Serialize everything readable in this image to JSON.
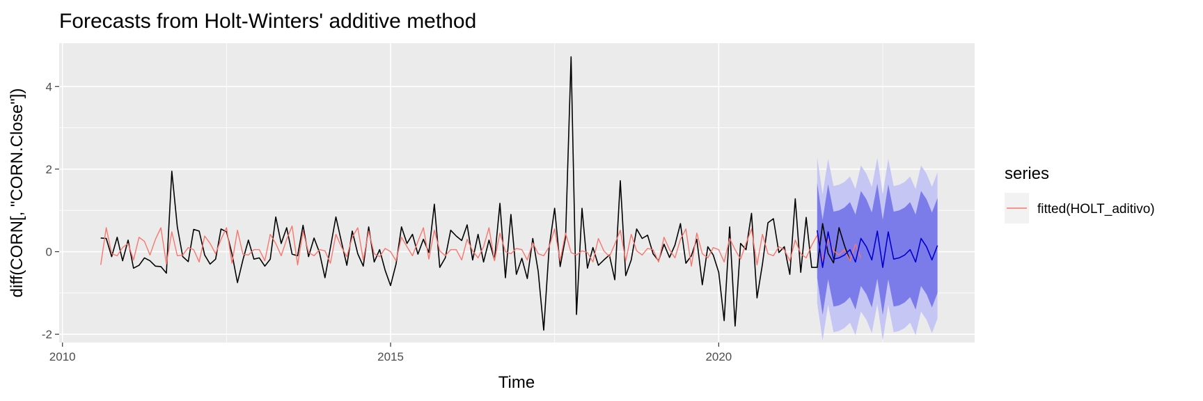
{
  "chart_data": {
    "type": "line",
    "title": "Forecasts from Holt-Winters' additive method",
    "xlabel": "Time",
    "ylabel": "diff(CORN[, \"CORN.Close\"])",
    "xlim": [
      2009.95,
      2023.9
    ],
    "ylim": [
      -2.2,
      5.05
    ],
    "x_ticks": [
      2010,
      2015,
      2020
    ],
    "x_tick_labels": [
      "2010",
      "2015",
      "2020"
    ],
    "y_ticks": [
      -2,
      0,
      2,
      4
    ],
    "y_tick_labels": [
      "-2",
      "0",
      "2",
      "4"
    ],
    "grid": true,
    "legend_position": "right",
    "legend_title": "series",
    "colors": {
      "observed": "#000000",
      "fitted": "#F8766D",
      "forecast": "#0000CC",
      "band80": "#7B7BEA",
      "band95": "#C6C6F5",
      "panel": "#EBEBEB",
      "grid": "#FFFFFF"
    },
    "series": [
      {
        "name": "",
        "role": "observed",
        "x_start": 2010.5833,
        "frequency": 12,
        "values": [
          0.33,
          0.32,
          -0.12,
          0.35,
          -0.22,
          0.28,
          -0.4,
          -0.33,
          -0.15,
          -0.22,
          -0.35,
          -0.36,
          -0.52,
          1.95,
          0.6,
          -0.12,
          -0.24,
          0.54,
          0.5,
          -0.08,
          -0.3,
          -0.18,
          0.55,
          0.48,
          -0.05,
          -0.75,
          -0.2,
          0.28,
          -0.18,
          -0.15,
          -0.35,
          -0.18,
          0.84,
          0.2,
          0.58,
          -0.06,
          -0.1,
          0.64,
          -0.12,
          0.33,
          -0.02,
          -0.63,
          0.1,
          0.84,
          0.25,
          -0.33,
          0.5,
          -0.05,
          -0.35,
          0.6,
          -0.25,
          0.05,
          -0.45,
          -0.82,
          -0.3,
          0.6,
          0.2,
          0.42,
          -0.06,
          0.3,
          -0.02,
          1.15,
          -0.38,
          -0.15,
          0.52,
          0.38,
          0.27,
          0.65,
          -0.2,
          0.42,
          -0.25,
          0.28,
          -0.2,
          1.17,
          -0.63,
          0.9,
          -0.55,
          -0.16,
          -0.65,
          0.32,
          -0.48,
          -1.9,
          0.1,
          1.05,
          -0.36,
          0.35,
          4.72,
          -1.52,
          1.05,
          -0.4,
          0.1,
          -0.33,
          -0.2,
          -0.08,
          -0.68,
          1.72,
          -0.58,
          -0.2,
          0.55,
          0.32,
          0.4,
          -0.05,
          -0.22,
          0.18,
          -0.14,
          0.16,
          0.68,
          -0.28,
          -0.1,
          0.3,
          -0.8,
          0.12,
          -0.08,
          -0.5,
          -1.67,
          0.6,
          -1.8,
          0.2,
          0.05,
          0.93,
          -1.12,
          -0.3,
          0.7,
          0.8,
          -0.02,
          0.12,
          -0.55,
          1.28,
          -0.5,
          0.83,
          -0.38,
          -0.38,
          0.68,
          -0.04,
          -0.27,
          0.58,
          0.15,
          -0.22
        ]
      },
      {
        "name": "fitted(HOLT_aditivo)",
        "role": "fitted",
        "x_start": 2010.5833,
        "frequency": 12,
        "values": [
          -0.32,
          0.58,
          -0.05,
          -0.1,
          0.1,
          0.2,
          -0.2,
          0.35,
          0.25,
          -0.08,
          0.3,
          0.58,
          -0.3,
          0.48,
          -0.1,
          -0.08,
          0.1,
          0.05,
          -0.25,
          0.38,
          0.2,
          -0.05,
          0.3,
          0.58,
          -0.28,
          0.52,
          -0.06,
          -0.08,
          0.05,
          0.05,
          -0.22,
          0.42,
          0.2,
          -0.1,
          0.3,
          0.62,
          -0.32,
          0.5,
          -0.02,
          -0.1,
          0.05,
          0.02,
          -0.28,
          0.42,
          0.12,
          -0.12,
          0.35,
          0.58,
          -0.2,
          0.5,
          -0.05,
          -0.12,
          0.08,
          0.0,
          -0.22,
          0.35,
          0.12,
          -0.1,
          0.25,
          0.58,
          -0.18,
          0.52,
          0.02,
          -0.1,
          0.05,
          0.05,
          -0.2,
          0.3,
          0.02,
          -0.15,
          0.12,
          0.58,
          -0.22,
          0.45,
          0.0,
          -0.05,
          0.08,
          0.05,
          -0.2,
          0.22,
          -0.05,
          -0.1,
          0.12,
          0.55,
          -0.22,
          0.45,
          -0.02,
          -0.08,
          0.02,
          -0.02,
          -0.25,
          0.32,
          0.02,
          -0.12,
          0.18,
          0.52,
          -0.22,
          0.42,
          0.02,
          -0.08,
          0.08,
          0.05,
          -0.25,
          0.35,
          0.05,
          -0.15,
          0.3,
          0.55,
          -0.35,
          0.45,
          -0.05,
          -0.15,
          0.1,
          0.05,
          -0.25,
          0.32,
          0.05,
          -0.18,
          0.2,
          0.55,
          -0.32,
          0.42,
          -0.05,
          -0.1,
          0.12,
          0.05,
          -0.22,
          0.28,
          -0.05,
          -0.15,
          0.15,
          0.4,
          -0.22,
          0.3,
          0.02,
          -0.08,
          0.05,
          -0.22,
          0.18,
          -0.15
        ]
      },
      {
        "name": "",
        "role": "forecast",
        "x_start": 2021.5,
        "frequency": 12,
        "values": [
          0.52,
          -0.38,
          0.48,
          -0.18,
          -0.15,
          -0.08,
          0.05,
          -0.25,
          0.32,
          0.12,
          -0.2,
          0.5,
          -0.38,
          0.48,
          -0.18,
          -0.15,
          -0.08,
          0.05,
          -0.25,
          0.32,
          0.12,
          -0.2,
          0.15
        ],
        "lower80": [
          -0.63,
          -1.53,
          -0.67,
          -1.33,
          -1.3,
          -1.23,
          -1.1,
          -1.4,
          -0.83,
          -1.03,
          -1.35,
          -0.65,
          -1.53,
          -0.67,
          -1.33,
          -1.3,
          -1.23,
          -1.1,
          -1.4,
          -0.83,
          -1.03,
          -1.35,
          -1.0
        ],
        "upper80": [
          1.67,
          0.77,
          1.63,
          0.97,
          1.0,
          1.07,
          1.2,
          0.9,
          1.47,
          1.27,
          0.95,
          1.65,
          0.77,
          1.63,
          0.97,
          1.0,
          1.07,
          1.2,
          0.9,
          1.47,
          1.27,
          0.95,
          1.3
        ],
        "lower95": [
          -1.25,
          -2.15,
          -1.29,
          -1.95,
          -1.92,
          -1.85,
          -1.72,
          -2.02,
          -1.45,
          -1.65,
          -1.97,
          -1.27,
          -2.15,
          -1.29,
          -1.95,
          -1.92,
          -1.85,
          -1.72,
          -2.02,
          -1.45,
          -1.65,
          -1.97,
          -1.62
        ],
        "upper95": [
          2.29,
          1.39,
          2.25,
          1.59,
          1.62,
          1.69,
          1.82,
          1.52,
          2.09,
          1.89,
          1.57,
          2.27,
          1.39,
          2.25,
          1.59,
          1.62,
          1.69,
          1.82,
          1.52,
          2.09,
          1.89,
          1.57,
          1.92
        ]
      }
    ]
  }
}
